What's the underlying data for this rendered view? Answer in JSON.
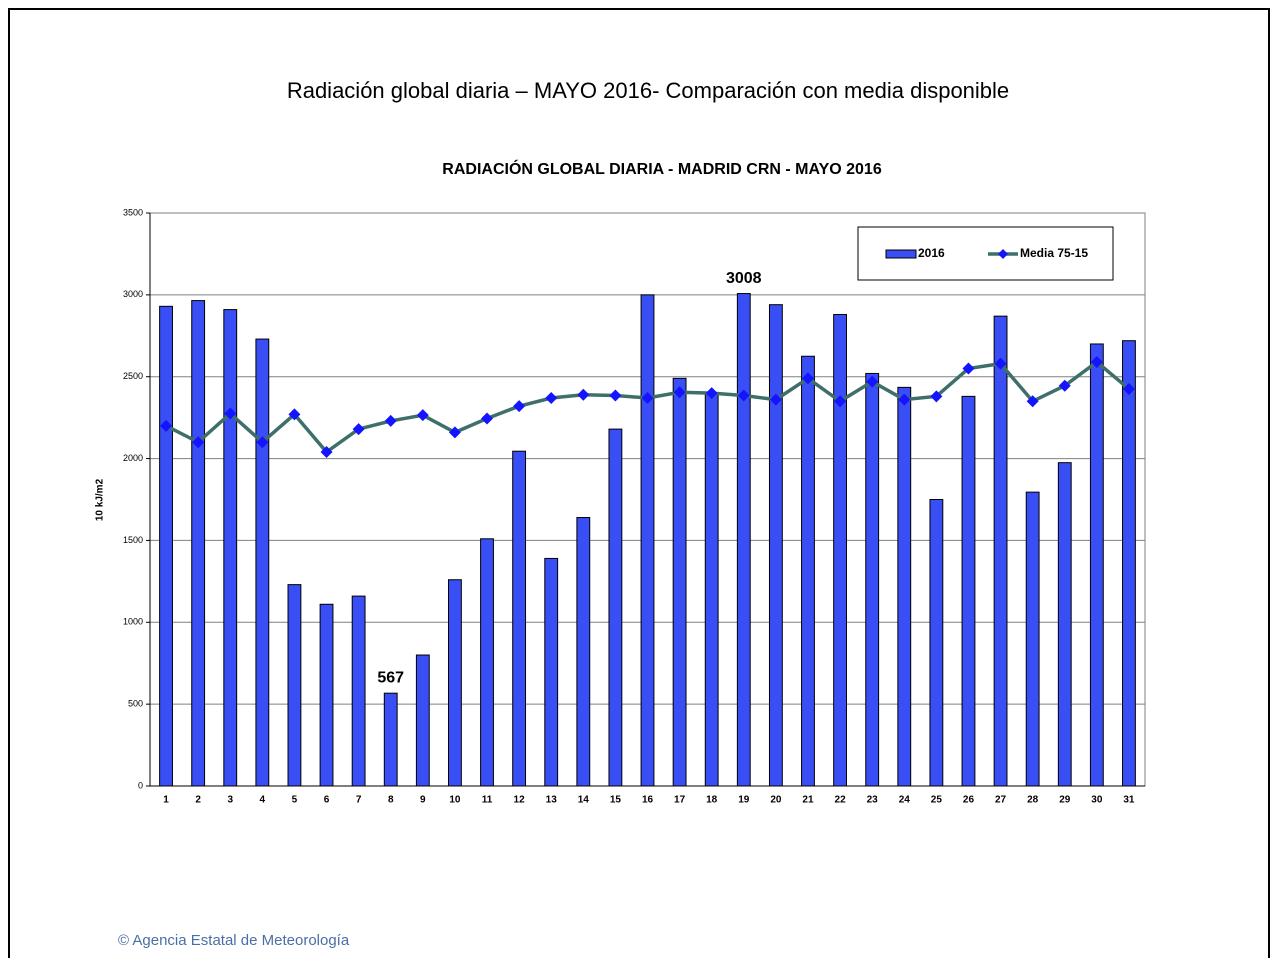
{
  "page_title": "Radiación global diaria –  MAYO 2016- Comparación con media disponible",
  "footer": "© Agencia Estatal de Meteorología",
  "chart_data": {
    "type": "bar-line",
    "title": "RADIACIÓN GLOBAL DIARIA -  MADRID  CRN -   MAYO  2016",
    "y_label": "10 kJ/m2",
    "categories": [
      "1",
      "2",
      "3",
      "4",
      "5",
      "6",
      "7",
      "8",
      "9",
      "10",
      "11",
      "12",
      "13",
      "14",
      "15",
      "16",
      "17",
      "18",
      "19",
      "20",
      "21",
      "22",
      "23",
      "24",
      "25",
      "26",
      "27",
      "28",
      "29",
      "30",
      "31"
    ],
    "series": [
      {
        "name": "2016",
        "type": "bar",
        "color": "#3a4ef5",
        "values": [
          2930,
          2965,
          2910,
          2730,
          1230,
          1110,
          1160,
          567,
          800,
          1260,
          1510,
          2045,
          1390,
          1640,
          2180,
          3000,
          2490,
          2400,
          3008,
          2940,
          2625,
          2880,
          2520,
          2435,
          1750,
          2380,
          2870,
          1795,
          1975,
          2700,
          2720
        ],
        "data_labels": "min-max"
      },
      {
        "name": "Media 75-15",
        "type": "line",
        "color": "#3f6f6a",
        "marker_color": "#1414ff",
        "values": [
          2200,
          2100,
          2275,
          2100,
          2270,
          2040,
          2180,
          2230,
          2265,
          2160,
          2245,
          2320,
          2370,
          2390,
          2385,
          2370,
          2405,
          2400,
          2385,
          2360,
          2490,
          2350,
          2470,
          2360,
          2380,
          2550,
          2580,
          2350,
          2445,
          2590,
          2425
        ]
      }
    ],
    "ylim": [
      0,
      3500
    ],
    "yticks": [
      0,
      500,
      1000,
      1500,
      2000,
      2500,
      3000,
      3500
    ],
    "grid": true,
    "legend": "top-right"
  }
}
